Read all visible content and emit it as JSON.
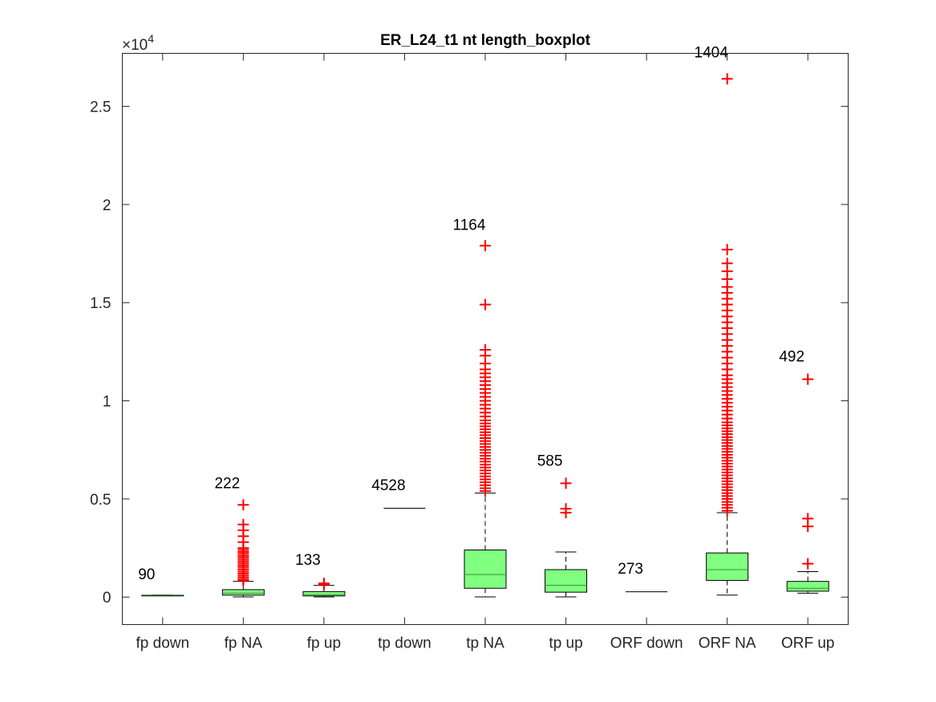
{
  "chart_data": {
    "type": "boxplot",
    "title": "ER_L24_t1 nt length_boxplot",
    "xlabel": "",
    "ylabel": "",
    "y_exponent_label": "×10",
    "y_exponent_power": "4",
    "ylim": [
      -1400,
      27700
    ],
    "yticks": [
      0,
      5000,
      10000,
      15000,
      20000,
      25000
    ],
    "ytick_labels": [
      "0",
      "0.5",
      "1",
      "1.5",
      "2",
      "2.5"
    ],
    "categories": [
      "fp down",
      "fp NA",
      "fp up",
      "tp down",
      "tp NA",
      "tp up",
      "ORF down",
      "ORF NA",
      "ORF up"
    ],
    "counts": [
      "90",
      "222",
      "133",
      "4528",
      "1164",
      "585",
      "273",
      "1404",
      "492"
    ],
    "count_label_y": [
      900,
      5550,
      1650,
      5450,
      18700,
      6700,
      1200,
      27500,
      12000
    ],
    "box_color": "#80ff80",
    "median_color": "#3c8c3c",
    "outlier_color": "#ff0000",
    "boxes": [
      {
        "q1": 80,
        "median": 90,
        "q3": 100,
        "wlo": 80,
        "whi": 100,
        "outliers": []
      },
      {
        "q1": 100,
        "median": 200,
        "q3": 380,
        "wlo": 10,
        "whi": 800,
        "outliers": [
          850,
          900,
          1000,
          1100,
          1200,
          1300,
          1400,
          1500,
          1600,
          1700,
          1800,
          1900,
          2000,
          2100,
          2200,
          2300,
          2400,
          2500,
          2800,
          3100,
          3400,
          3700,
          4700
        ]
      },
      {
        "q1": 60,
        "median": 130,
        "q3": 280,
        "wlo": 10,
        "whi": 600,
        "outliers": [
          650,
          700
        ]
      },
      {
        "q1": 4528,
        "median": 4528,
        "q3": 4528,
        "wlo": 4528,
        "whi": 4528,
        "outliers": []
      },
      {
        "q1": 450,
        "median": 1150,
        "q3": 2400,
        "wlo": 10,
        "whi": 5300,
        "outliers": [
          5400,
          5550,
          5700,
          5850,
          6000,
          6150,
          6300,
          6450,
          6600,
          6750,
          6900,
          7050,
          7200,
          7350,
          7500,
          7650,
          7800,
          7950,
          8100,
          8250,
          8400,
          8550,
          8700,
          8850,
          9000,
          9200,
          9400,
          9600,
          9800,
          10000,
          10200,
          10400,
          10600,
          10800,
          11000,
          11200,
          11400,
          11600,
          11900,
          12300,
          12600,
          14900,
          17900
        ]
      },
      {
        "q1": 250,
        "median": 600,
        "q3": 1400,
        "wlo": 10,
        "whi": 2300,
        "outliers": [
          4300,
          4500,
          5800
        ]
      },
      {
        "q1": 273,
        "median": 273,
        "q3": 273,
        "wlo": 273,
        "whi": 273,
        "outliers": []
      },
      {
        "q1": 850,
        "median": 1400,
        "q3": 2250,
        "wlo": 100,
        "whi": 4300,
        "outliers": [
          4400,
          4550,
          4700,
          4850,
          5000,
          5150,
          5300,
          5450,
          5600,
          5750,
          5900,
          6050,
          6200,
          6350,
          6500,
          6650,
          6800,
          6950,
          7100,
          7250,
          7400,
          7550,
          7700,
          7850,
          8000,
          8150,
          8300,
          8450,
          8600,
          8750,
          8900,
          9100,
          9300,
          9500,
          9700,
          9900,
          10100,
          10300,
          10500,
          10700,
          10900,
          11100,
          11300,
          11600,
          11900,
          12200,
          12500,
          12800,
          13100,
          13400,
          13700,
          14000,
          14300,
          14600,
          14900,
          15200,
          15500,
          15800,
          16200,
          16600,
          17000,
          17700,
          26400
        ]
      },
      {
        "q1": 300,
        "median": 450,
        "q3": 800,
        "wlo": 200,
        "whi": 1300,
        "outliers": [
          1700,
          3600,
          4000,
          11100
        ]
      }
    ]
  }
}
